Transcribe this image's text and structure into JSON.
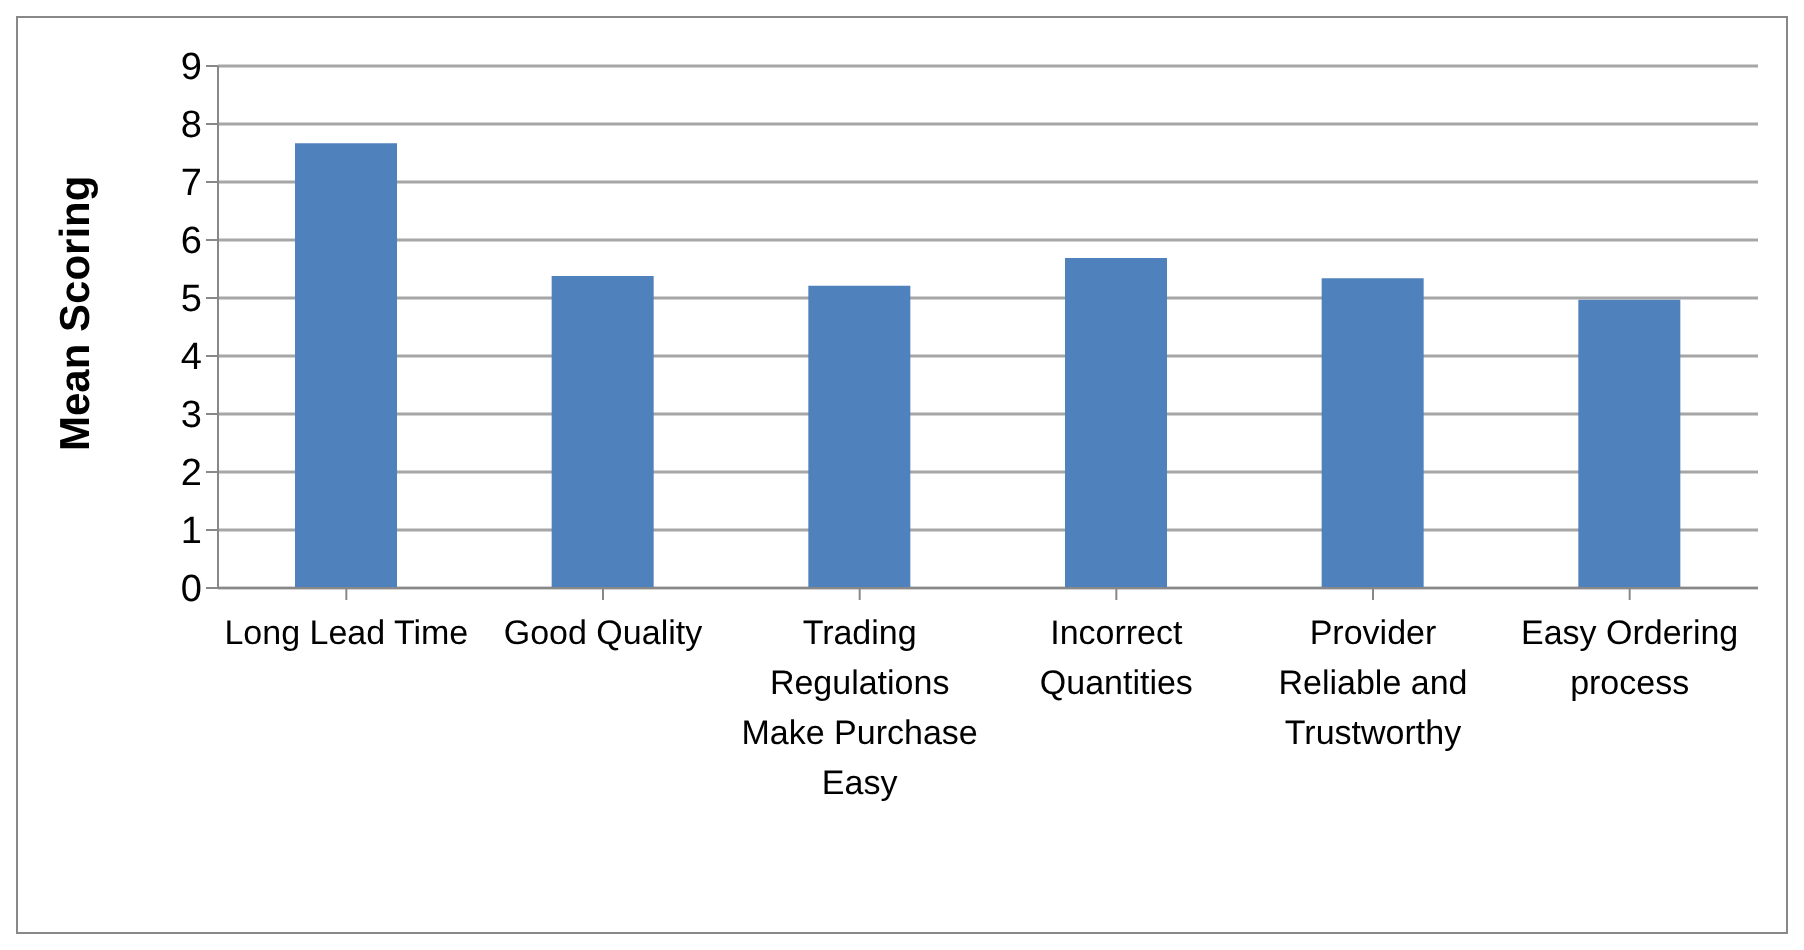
{
  "chart_data": {
    "type": "bar",
    "ylabel": "Mean Scoring",
    "categories": [
      "Long Lead Time",
      "Good Quality",
      "Trading Regulations Make Purchase Easy",
      "Incorrect Quantities",
      "Provider Reliable and Trustworthy",
      "Easy Ordering process"
    ],
    "values": [
      7.67,
      5.38,
      5.21,
      5.69,
      5.34,
      4.97
    ],
    "color": "#4f81bd",
    "ylim": [
      0,
      9
    ],
    "yticks": [
      0,
      1,
      2,
      3,
      4,
      5,
      6,
      7,
      8,
      9
    ],
    "grid": "y",
    "legend": false
  }
}
